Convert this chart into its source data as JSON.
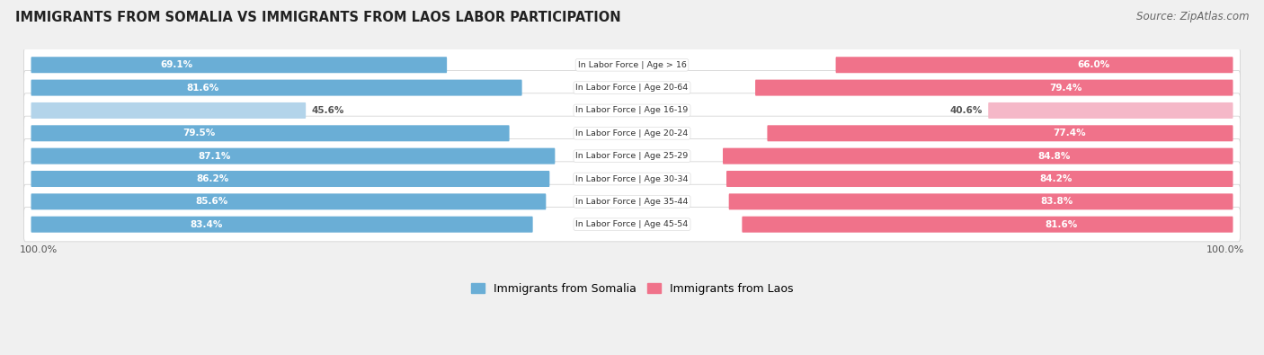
{
  "title": "IMMIGRANTS FROM SOMALIA VS IMMIGRANTS FROM LAOS LABOR PARTICIPATION",
  "source": "Source: ZipAtlas.com",
  "categories": [
    "In Labor Force | Age > 16",
    "In Labor Force | Age 20-64",
    "In Labor Force | Age 16-19",
    "In Labor Force | Age 20-24",
    "In Labor Force | Age 25-29",
    "In Labor Force | Age 30-34",
    "In Labor Force | Age 35-44",
    "In Labor Force | Age 45-54"
  ],
  "somalia_values": [
    69.1,
    81.6,
    45.6,
    79.5,
    87.1,
    86.2,
    85.6,
    83.4
  ],
  "laos_values": [
    66.0,
    79.4,
    40.6,
    77.4,
    84.8,
    84.2,
    83.8,
    81.6
  ],
  "somalia_color": "#6aaed6",
  "somalia_color_light": "#b3d4ea",
  "laos_color": "#f0728a",
  "laos_color_light": "#f5b8c8",
  "bg_color": "#f0f0f0",
  "row_bg_color": "#e8e8ee",
  "max_val": 100.0,
  "legend_somalia": "Immigrants from Somalia",
  "legend_laos": "Immigrants from Laos"
}
